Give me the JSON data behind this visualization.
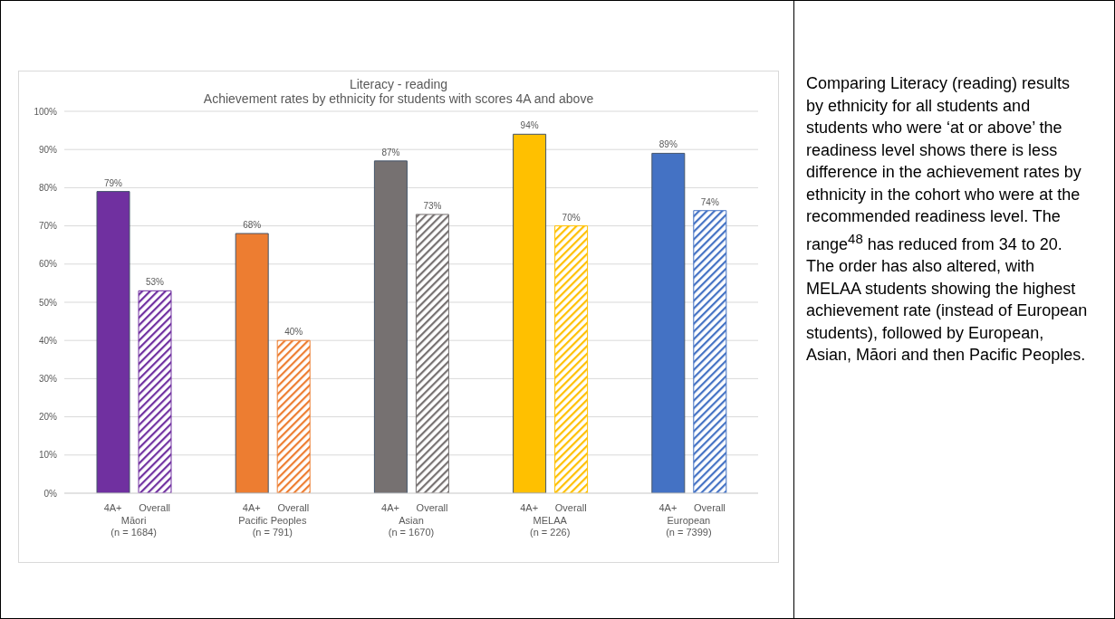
{
  "chart_data": [
    {
      "type": "bar",
      "title": "Literacy - reading",
      "subtitle": "Achievement rates by ethnicity for students with scores 4A and above",
      "categories": [
        "Māori\n(n = 1684)",
        "Pacific Peoples\n(n = 791)",
        "Asian\n(n = 1670)",
        "MELAA\n(n = 226)",
        "European\n(n = 7399)"
      ],
      "series": [
        {
          "name": "4A+",
          "colors": [
            "#7030a0",
            "#ed7d31",
            "#767171",
            "#ffc000",
            "#4472c4"
          ],
          "values": [
            79,
            68,
            87,
            94,
            89
          ],
          "value_labels": [
            "79%",
            "68%",
            "87%",
            "94%",
            "89%"
          ]
        },
        {
          "name": "Overall",
          "colors": [
            "#7030a0",
            "#ed7d31",
            "#767171",
            "#ffc000",
            "#4472c4"
          ],
          "values": [
            53,
            40,
            73,
            70,
            74
          ],
          "value_labels": [
            "53%",
            "40%",
            "73%",
            "70%",
            "74%"
          ]
        }
      ],
      "ylim": [
        0,
        100
      ],
      "yticks": [
        {
          "value": 0,
          "label": "0%"
        },
        {
          "value": 10,
          "label": "10%"
        },
        {
          "value": 20,
          "label": "20%"
        },
        {
          "value": 30,
          "label": "30%"
        },
        {
          "value": 40,
          "label": "40%"
        },
        {
          "value": 50,
          "label": "50%"
        },
        {
          "value": 60,
          "label": "60%"
        },
        {
          "value": 70,
          "label": "70%"
        },
        {
          "value": 80,
          "label": "80%"
        },
        {
          "value": 90,
          "label": "90%"
        },
        {
          "value": 100,
          "label": "100%"
        }
      ],
      "grid": "y",
      "legend": false
    },
    {
      "type": "other",
      "annotations": [
        "Comparing Literacy (reading) results by ethnicity for all students and students who were ‘at or above’ the readiness level shows there is less difference in the achievement rates by ethnicity in the cohort who were at the recommended readiness level. The range$^{48}$ has reduced from 34 to 20. The order has also altered, with MELAA students showing the highest achievement rate (instead of European students), followed by European, Asian, Māori and then Pacific Peoples."
      ]
    }
  ]
}
